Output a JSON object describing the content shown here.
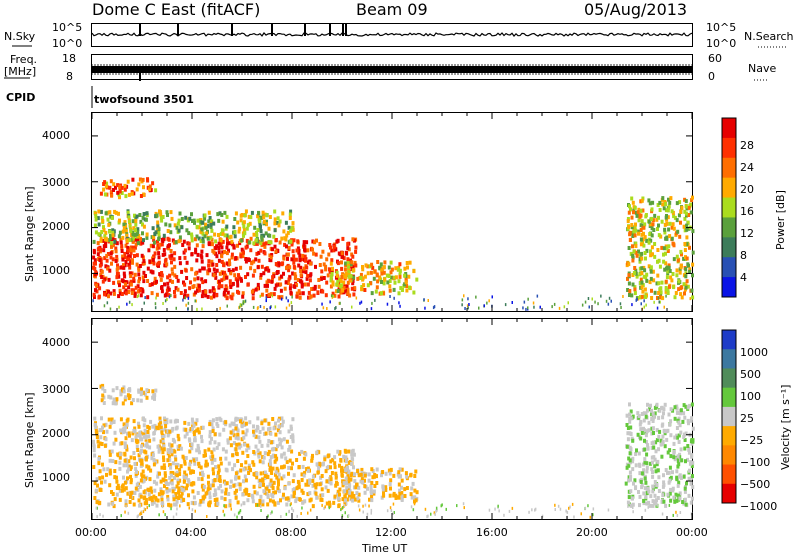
{
  "header": {
    "station": "Dome C East (fitACF)",
    "beam": "Beam 09",
    "date": "05/Aug/2013"
  },
  "nsky_panel": {
    "left_label": "N.Sky",
    "right_label": "N.Search",
    "left_ticks": [
      "10^5",
      "10^0"
    ],
    "right_ticks": [
      "10^5",
      "10^0"
    ]
  },
  "freq_panel": {
    "left_label": "Freq.",
    "left_unit": "[MHz]",
    "right_label": "Nave",
    "left_ticks": [
      "18",
      "8"
    ],
    "right_ticks": [
      "60",
      "0"
    ]
  },
  "cpid_panel": {
    "label": "CPID",
    "program": "twofsound 3501"
  },
  "colors": {
    "power_scale": [
      "#0a14e6",
      "#2850b4",
      "#3c7c5a",
      "#5aa03c",
      "#aadc1e",
      "#ffaa00",
      "#ff6e00",
      "#ff3000",
      "#e60000"
    ],
    "velocity_scale": [
      "#1e3cc8",
      "#3c78a0",
      "#508c5a",
      "#64c83c",
      "#c8c8c8",
      "#ffaa00",
      "#ff8800",
      "#ff5000",
      "#e60000"
    ]
  },
  "chart_data": [
    {
      "type": "heatmap",
      "name": "power",
      "xlabel": "",
      "ylabel": "Slant Range [km]",
      "xlim": [
        "00:00",
        "24:00"
      ],
      "ylim": [
        180,
        4500
      ],
      "yticks": [
        "1000",
        "2000",
        "3000",
        "4000"
      ],
      "colorbar": {
        "label": "Power [dB]",
        "ticks": [
          "4",
          "8",
          "12",
          "16",
          "20",
          "24",
          "28"
        ],
        "range": [
          0,
          30
        ]
      },
      "regions": [
        {
          "t_start": 0.0,
          "t_end": 10.5,
          "r_low": 500,
          "r_high": 1800,
          "value": 26
        },
        {
          "t_start": 0.0,
          "t_end": 8.0,
          "r_low": 1700,
          "r_high": 2400,
          "value": 14
        },
        {
          "t_start": 0.3,
          "t_end": 2.5,
          "r_low": 2700,
          "r_high": 3100,
          "value": 22
        },
        {
          "t_start": 9.5,
          "t_end": 13.0,
          "r_low": 600,
          "r_high": 1300,
          "value": 18
        },
        {
          "t_start": 21.3,
          "t_end": 24.0,
          "r_low": 500,
          "r_high": 2700,
          "value": 16
        }
      ]
    },
    {
      "type": "heatmap",
      "name": "velocity",
      "xlabel": "Time UT",
      "ylabel": "Slant Range [km]",
      "xlim": [
        "00:00",
        "24:00"
      ],
      "ylim": [
        180,
        4500
      ],
      "yticks": [
        "1000",
        "2000",
        "3000",
        "4000"
      ],
      "xticks": [
        "00:00",
        "04:00",
        "08:00",
        "12:00",
        "16:00",
        "20:00",
        "00:00"
      ],
      "colorbar": {
        "label": "Velocity [m s⁻¹]",
        "ticks": [
          "1000",
          "500",
          "100",
          "25",
          "−25",
          "−100",
          "−500",
          "−1000"
        ],
        "range": [
          1000,
          -1000
        ]
      },
      "regions": [
        {
          "t_start": 0.0,
          "t_end": 10.5,
          "r_low": 500,
          "r_high": 1700,
          "value": -150
        },
        {
          "t_start": 0.0,
          "t_end": 8.0,
          "r_low": 1700,
          "r_high": 2400,
          "value": -60
        },
        {
          "t_start": 0.3,
          "t_end": 2.5,
          "r_low": 2700,
          "r_high": 3100,
          "value": -80
        },
        {
          "t_start": 10.0,
          "t_end": 13.0,
          "r_low": 600,
          "r_high": 1300,
          "value": -120
        },
        {
          "t_start": 21.3,
          "t_end": 24.0,
          "r_low": 500,
          "r_high": 2700,
          "value": 60
        }
      ]
    }
  ]
}
